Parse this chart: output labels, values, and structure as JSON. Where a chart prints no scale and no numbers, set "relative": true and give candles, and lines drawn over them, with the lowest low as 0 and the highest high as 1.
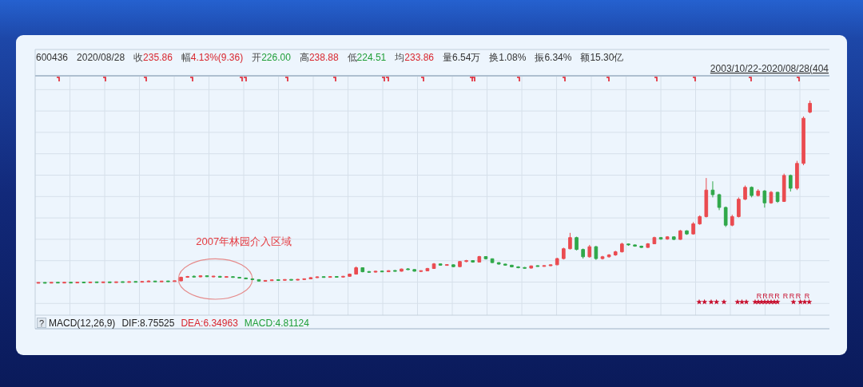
{
  "chart_data": {
    "type": "candlestick",
    "relative": true,
    "grid": true,
    "annotations": [
      "600436",
      "2020/08/28",
      "收235.86",
      "幅4.13%(9.36)",
      "开226.00",
      "高238.88",
      "低224.51",
      "均233.86",
      "量6.54万",
      "换1.08%",
      "振6.34%",
      "额15.30亿",
      "2003/10/22-2020/08/28(404",
      "2007年林园介入区域",
      "?",
      "MACD(12,26,9)",
      "DIF:8.75525",
      "DEA:6.34963",
      "MACD:4.81124",
      "R",
      "R",
      "R",
      "R",
      "R",
      "R",
      "R",
      "R"
    ],
    "categories": [
      null,
      null,
      null,
      null,
      null,
      null,
      null,
      null,
      null,
      null,
      null,
      null,
      null,
      null,
      null,
      null,
      null,
      null,
      null,
      null,
      null,
      null,
      null,
      null,
      null,
      null,
      null,
      null,
      null,
      null,
      null,
      null,
      null,
      null,
      null,
      null,
      null,
      null,
      null,
      null,
      null,
      null,
      null,
      null,
      null,
      null,
      null,
      null,
      null,
      null,
      null,
      null,
      null,
      null,
      null,
      null,
      null,
      null,
      null,
      null,
      null,
      null,
      null,
      null,
      null,
      null,
      null,
      null,
      null,
      null,
      null,
      null,
      null,
      null,
      null,
      null,
      null,
      null,
      null,
      null,
      null,
      null,
      null,
      null,
      null,
      null,
      null,
      null,
      null,
      null,
      null,
      null,
      null,
      null,
      null,
      null,
      null,
      null,
      null,
      null,
      null,
      null,
      null,
      null,
      null,
      null,
      null,
      null,
      null,
      null,
      null,
      null,
      null,
      null,
      null,
      null,
      null,
      null,
      null,
      null
    ],
    "ohlc": [
      [
        0.002,
        0.004,
        0.0,
        0.003
      ],
      [
        0.003,
        0.005,
        0.001,
        0.002
      ],
      [
        0.002,
        0.005,
        0.001,
        0.004
      ],
      [
        0.004,
        0.006,
        0.002,
        0.003
      ],
      [
        0.003,
        0.005,
        0.001,
        0.004
      ],
      [
        0.004,
        0.006,
        0.002,
        0.003
      ],
      [
        0.003,
        0.006,
        0.002,
        0.005
      ],
      [
        0.005,
        0.007,
        0.003,
        0.004
      ],
      [
        0.004,
        0.007,
        0.003,
        0.006
      ],
      [
        0.006,
        0.008,
        0.004,
        0.005
      ],
      [
        0.005,
        0.008,
        0.004,
        0.006
      ],
      [
        0.006,
        0.008,
        0.004,
        0.005
      ],
      [
        0.005,
        0.008,
        0.004,
        0.007
      ],
      [
        0.007,
        0.009,
        0.005,
        0.006
      ],
      [
        0.006,
        0.009,
        0.005,
        0.008
      ],
      [
        0.008,
        0.01,
        0.006,
        0.007
      ],
      [
        0.007,
        0.01,
        0.006,
        0.009
      ],
      [
        0.009,
        0.016,
        0.008,
        0.011
      ],
      [
        0.011,
        0.012,
        0.008,
        0.009
      ],
      [
        0.009,
        0.012,
        0.008,
        0.011
      ],
      [
        0.011,
        0.013,
        0.009,
        0.01
      ],
      [
        0.01,
        0.014,
        0.009,
        0.013
      ],
      [
        0.013,
        0.036,
        0.012,
        0.033
      ],
      [
        0.033,
        0.04,
        0.03,
        0.037
      ],
      [
        0.037,
        0.043,
        0.033,
        0.035
      ],
      [
        0.035,
        0.044,
        0.033,
        0.041
      ],
      [
        0.041,
        0.042,
        0.034,
        0.036
      ],
      [
        0.036,
        0.04,
        0.033,
        0.038
      ],
      [
        0.038,
        0.04,
        0.031,
        0.033
      ],
      [
        0.033,
        0.038,
        0.031,
        0.036
      ],
      [
        0.036,
        0.038,
        0.031,
        0.032
      ],
      [
        0.032,
        0.035,
        0.027,
        0.029
      ],
      [
        0.029,
        0.031,
        0.022,
        0.024
      ],
      [
        0.024,
        0.026,
        0.018,
        0.02
      ],
      [
        0.02,
        0.022,
        0.01,
        0.012
      ],
      [
        0.012,
        0.017,
        0.01,
        0.015
      ],
      [
        0.015,
        0.02,
        0.013,
        0.018
      ],
      [
        0.018,
        0.021,
        0.015,
        0.017
      ],
      [
        0.017,
        0.022,
        0.015,
        0.02
      ],
      [
        0.02,
        0.022,
        0.016,
        0.018
      ],
      [
        0.018,
        0.023,
        0.016,
        0.021
      ],
      [
        0.021,
        0.026,
        0.019,
        0.024
      ],
      [
        0.024,
        0.034,
        0.022,
        0.031
      ],
      [
        0.031,
        0.038,
        0.029,
        0.035
      ],
      [
        0.035,
        0.037,
        0.031,
        0.033
      ],
      [
        0.033,
        0.038,
        0.031,
        0.036
      ],
      [
        0.036,
        0.038,
        0.032,
        0.034
      ],
      [
        0.034,
        0.04,
        0.032,
        0.038
      ],
      [
        0.038,
        0.053,
        0.036,
        0.05
      ],
      [
        0.05,
        0.092,
        0.048,
        0.085
      ],
      [
        0.085,
        0.087,
        0.06,
        0.063
      ],
      [
        0.063,
        0.067,
        0.058,
        0.061
      ],
      [
        0.061,
        0.069,
        0.059,
        0.066
      ],
      [
        0.066,
        0.07,
        0.061,
        0.063
      ],
      [
        0.063,
        0.071,
        0.061,
        0.069
      ],
      [
        0.069,
        0.072,
        0.064,
        0.066
      ],
      [
        0.066,
        0.08,
        0.064,
        0.078
      ],
      [
        0.078,
        0.083,
        0.073,
        0.075
      ],
      [
        0.075,
        0.077,
        0.064,
        0.066
      ],
      [
        0.066,
        0.07,
        0.062,
        0.068
      ],
      [
        0.068,
        0.084,
        0.066,
        0.081
      ],
      [
        0.081,
        0.111,
        0.079,
        0.106
      ],
      [
        0.106,
        0.108,
        0.096,
        0.099
      ],
      [
        0.099,
        0.104,
        0.096,
        0.101
      ],
      [
        0.101,
        0.103,
        0.088,
        0.091
      ],
      [
        0.091,
        0.122,
        0.089,
        0.119
      ],
      [
        0.119,
        0.128,
        0.115,
        0.124
      ],
      [
        0.124,
        0.126,
        0.113,
        0.116
      ],
      [
        0.116,
        0.15,
        0.114,
        0.146
      ],
      [
        0.146,
        0.148,
        0.13,
        0.134
      ],
      [
        0.134,
        0.136,
        0.11,
        0.113
      ],
      [
        0.113,
        0.115,
        0.102,
        0.105
      ],
      [
        0.105,
        0.107,
        0.096,
        0.099
      ],
      [
        0.099,
        0.101,
        0.087,
        0.09
      ],
      [
        0.09,
        0.093,
        0.082,
        0.085
      ],
      [
        0.085,
        0.089,
        0.08,
        0.083
      ],
      [
        0.083,
        0.097,
        0.081,
        0.095
      ],
      [
        0.095,
        0.098,
        0.091,
        0.093
      ],
      [
        0.093,
        0.098,
        0.091,
        0.096
      ],
      [
        0.096,
        0.103,
        0.094,
        0.101
      ],
      [
        0.101,
        0.14,
        0.099,
        0.135
      ],
      [
        0.135,
        0.195,
        0.13,
        0.189
      ],
      [
        0.189,
        0.276,
        0.185,
        0.25
      ],
      [
        0.25,
        0.255,
        0.18,
        0.185
      ],
      [
        0.185,
        0.19,
        0.135,
        0.145
      ],
      [
        0.145,
        0.21,
        0.14,
        0.2
      ],
      [
        0.2,
        0.205,
        0.128,
        0.135
      ],
      [
        0.135,
        0.15,
        0.13,
        0.145
      ],
      [
        0.145,
        0.16,
        0.14,
        0.155
      ],
      [
        0.155,
        0.178,
        0.15,
        0.172
      ],
      [
        0.172,
        0.222,
        0.168,
        0.215
      ],
      [
        0.215,
        0.218,
        0.205,
        0.21
      ],
      [
        0.21,
        0.212,
        0.2,
        0.203
      ],
      [
        0.203,
        0.206,
        0.193,
        0.196
      ],
      [
        0.196,
        0.22,
        0.194,
        0.216
      ],
      [
        0.216,
        0.255,
        0.214,
        0.25
      ],
      [
        0.25,
        0.252,
        0.238,
        0.242
      ],
      [
        0.242,
        0.258,
        0.238,
        0.254
      ],
      [
        0.254,
        0.256,
        0.236,
        0.24
      ],
      [
        0.24,
        0.292,
        0.238,
        0.287
      ],
      [
        0.287,
        0.29,
        0.265,
        0.27
      ],
      [
        0.27,
        0.335,
        0.266,
        0.325
      ],
      [
        0.325,
        0.372,
        0.32,
        0.365
      ],
      [
        0.365,
        0.576,
        0.36,
        0.51
      ],
      [
        0.51,
        0.558,
        0.47,
        0.485
      ],
      [
        0.485,
        0.49,
        0.4,
        0.415
      ],
      [
        0.415,
        0.42,
        0.308,
        0.318
      ],
      [
        0.318,
        0.375,
        0.312,
        0.365
      ],
      [
        0.365,
        0.47,
        0.36,
        0.46
      ],
      [
        0.46,
        0.535,
        0.455,
        0.525
      ],
      [
        0.525,
        0.53,
        0.47,
        0.48
      ],
      [
        0.48,
        0.515,
        0.475,
        0.505
      ],
      [
        0.505,
        0.51,
        0.414,
        0.44
      ],
      [
        0.44,
        0.505,
        0.435,
        0.498
      ],
      [
        0.498,
        0.5,
        0.44,
        0.448
      ],
      [
        0.448,
        0.6,
        0.445,
        0.59
      ],
      [
        0.59,
        0.595,
        0.502,
        0.52
      ],
      [
        0.52,
        0.67,
        0.51,
        0.656
      ],
      [
        0.656,
        0.913,
        0.646,
        0.903
      ],
      [
        0.937,
        1.0,
        0.93,
        0.985
      ]
    ],
    "colors": [
      "#ea4b50",
      "#30a84a",
      "#ea4b50",
      "#30a84a",
      "#ea4b50",
      "#30a84a",
      "#ea4b50",
      "#30a84a",
      "#ea4b50",
      "#30a84a",
      "#ea4b50",
      "#30a84a",
      "#ea4b50",
      "#30a84a",
      "#ea4b50",
      "#30a84a",
      "#ea4b50",
      "#ea4b50",
      "#30a84a",
      "#ea4b50",
      "#30a84a",
      "#ea4b50",
      "#ea4b50",
      "#ea4b50",
      "#30a84a",
      "#ea4b50",
      "#30a84a",
      "#ea4b50",
      "#30a84a",
      "#ea4b50",
      "#30a84a",
      "#30a84a",
      "#30a84a",
      "#30a84a",
      "#30a84a",
      "#ea4b50",
      "#ea4b50",
      "#30a84a",
      "#ea4b50",
      "#30a84a",
      "#ea4b50",
      "#ea4b50",
      "#ea4b50",
      "#ea4b50",
      "#30a84a",
      "#ea4b50",
      "#30a84a",
      "#ea4b50",
      "#ea4b50",
      "#ea4b50",
      "#30a84a",
      "#30a84a",
      "#ea4b50",
      "#30a84a",
      "#ea4b50",
      "#30a84a",
      "#ea4b50",
      "#30a84a",
      "#30a84a",
      "#ea4b50",
      "#ea4b50",
      "#ea4b50",
      "#30a84a",
      "#ea4b50",
      "#30a84a",
      "#ea4b50",
      "#ea4b50",
      "#30a84a",
      "#ea4b50",
      "#30a84a",
      "#30a84a",
      "#30a84a",
      "#30a84a",
      "#30a84a",
      "#30a84a",
      "#30a84a",
      "#ea4b50",
      "#30a84a",
      "#ea4b50",
      "#ea4b50",
      "#ea4b50",
      "#ea4b50",
      "#ea4b50",
      "#30a84a",
      "#30a84a",
      "#ea4b50",
      "#30a84a",
      "#ea4b50",
      "#ea4b50",
      "#ea4b50",
      "#ea4b50",
      "#30a84a",
      "#30a84a",
      "#30a84a",
      "#ea4b50",
      "#ea4b50",
      "#30a84a",
      "#ea4b50",
      "#30a84a",
      "#ea4b50",
      "#30a84a",
      "#ea4b50",
      "#ea4b50",
      "#ea4b50",
      "#30a84a",
      "#30a84a",
      "#30a84a",
      "#ea4b50",
      "#ea4b50",
      "#ea4b50",
      "#30a84a",
      "#ea4b50",
      "#30a84a",
      "#ea4b50",
      "#30a84a",
      "#ea4b50",
      "#30a84a",
      "#ea4b50",
      "#ea4b50",
      "#ea4b50"
    ]
  }
}
